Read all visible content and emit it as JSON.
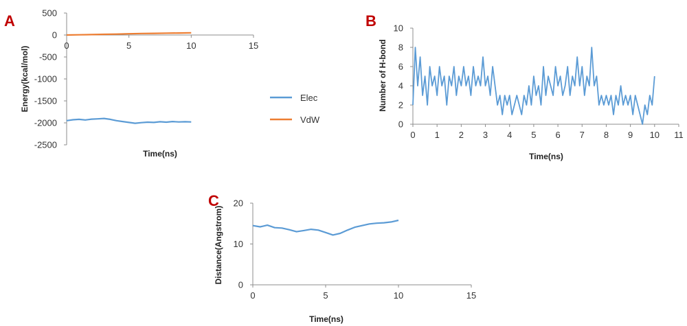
{
  "chart_data": [
    {
      "panel": "A",
      "type": "line",
      "xlabel": "Time(ns)",
      "ylabel": "Energy(kcal/mol)",
      "xlim": [
        0,
        15
      ],
      "ylim": [
        -2500,
        500
      ],
      "xticks": [
        0,
        5,
        10,
        15
      ],
      "yticks": [
        500,
        0,
        -500,
        -1000,
        -1500,
        -2000,
        -2500
      ],
      "grid": false,
      "legend_position": "right",
      "series": [
        {
          "name": "Elec",
          "color": "#5b9bd5",
          "x": [
            0,
            0.5,
            1,
            1.5,
            2,
            2.5,
            3,
            3.5,
            4,
            4.5,
            5,
            5.5,
            6,
            6.5,
            7,
            7.5,
            8,
            8.5,
            9,
            9.5,
            10
          ],
          "y": [
            -1950,
            -1930,
            -1920,
            -1935,
            -1915,
            -1910,
            -1900,
            -1920,
            -1950,
            -1970,
            -1990,
            -2010,
            -1995,
            -1985,
            -1990,
            -1975,
            -1985,
            -1970,
            -1980,
            -1975,
            -1980
          ]
        },
        {
          "name": "VdW",
          "color": "#ed7d31",
          "x": [
            0,
            1,
            2,
            3,
            4,
            5,
            6,
            7,
            8,
            9,
            10
          ],
          "y": [
            0,
            5,
            10,
            15,
            20,
            28,
            35,
            38,
            42,
            45,
            50
          ]
        }
      ]
    },
    {
      "panel": "B",
      "type": "line",
      "xlabel": "Time(ns)",
      "ylabel": "Number of H-bond",
      "xlim": [
        0,
        11
      ],
      "ylim": [
        0,
        10
      ],
      "xticks": [
        0,
        1,
        2,
        3,
        4,
        5,
        6,
        7,
        8,
        9,
        10,
        11
      ],
      "yticks": [
        10,
        8,
        6,
        4,
        2,
        0
      ],
      "grid": false,
      "series": [
        {
          "color": "#5b9bd5",
          "x": [
            0,
            0.1,
            0.2,
            0.3,
            0.4,
            0.5,
            0.6,
            0.7,
            0.8,
            0.9,
            1.0,
            1.1,
            1.2,
            1.3,
            1.4,
            1.5,
            1.6,
            1.7,
            1.8,
            1.9,
            2.0,
            2.1,
            2.2,
            2.3,
            2.4,
            2.5,
            2.6,
            2.7,
            2.8,
            2.9,
            3.0,
            3.1,
            3.2,
            3.3,
            3.4,
            3.5,
            3.6,
            3.7,
            3.8,
            3.9,
            4.0,
            4.1,
            4.2,
            4.3,
            4.4,
            4.5,
            4.6,
            4.7,
            4.8,
            4.9,
            5.0,
            5.1,
            5.2,
            5.3,
            5.4,
            5.5,
            5.6,
            5.7,
            5.8,
            5.9,
            6.0,
            6.1,
            6.2,
            6.3,
            6.4,
            6.5,
            6.6,
            6.7,
            6.8,
            6.9,
            7.0,
            7.1,
            7.2,
            7.3,
            7.4,
            7.5,
            7.6,
            7.7,
            7.8,
            7.9,
            8.0,
            8.1,
            8.2,
            8.3,
            8.4,
            8.5,
            8.6,
            8.7,
            8.8,
            8.9,
            9.0,
            9.1,
            9.2,
            9.3,
            9.4,
            9.5,
            9.6,
            9.7,
            9.8,
            9.9,
            10.0
          ],
          "y": [
            2,
            8,
            4,
            7,
            3,
            5,
            2,
            6,
            4,
            5,
            3,
            6,
            4,
            5,
            2,
            5,
            4,
            6,
            3,
            5,
            4,
            6,
            4,
            5,
            3,
            6,
            4,
            5,
            4,
            7,
            4,
            5,
            3,
            6,
            4,
            2,
            3,
            1,
            3,
            2,
            3,
            1,
            2,
            3,
            2,
            1,
            3,
            2,
            4,
            2,
            5,
            3,
            4,
            2,
            6,
            3,
            5,
            4,
            3,
            6,
            4,
            5,
            3,
            4,
            6,
            3,
            5,
            4,
            7,
            4,
            6,
            3,
            5,
            4,
            8,
            4,
            5,
            2,
            3,
            2,
            3,
            2,
            3,
            1,
            3,
            2,
            4,
            2,
            3,
            2,
            3,
            1,
            3,
            2,
            1,
            0,
            2,
            1,
            3,
            2,
            5
          ]
        }
      ]
    },
    {
      "panel": "C",
      "type": "line",
      "xlabel": "Time(ns)",
      "ylabel": "Distance(Angstrom)",
      "xlim": [
        0,
        15
      ],
      "ylim": [
        0,
        20
      ],
      "xticks": [
        0,
        5,
        10,
        15
      ],
      "yticks": [
        20,
        10,
        0
      ],
      "grid": false,
      "series": [
        {
          "color": "#5b9bd5",
          "x": [
            0,
            0.5,
            1,
            1.5,
            2,
            2.5,
            3,
            3.5,
            4,
            4.5,
            5,
            5.5,
            6,
            6.5,
            7,
            7.5,
            8,
            8.5,
            9,
            9.5,
            10
          ],
          "y": [
            14.5,
            14.2,
            14.6,
            14.0,
            13.9,
            13.5,
            13.0,
            13.3,
            13.6,
            13.4,
            12.8,
            12.2,
            12.6,
            13.4,
            14.1,
            14.5,
            14.9,
            15.1,
            15.2,
            15.4,
            15.8
          ]
        }
      ]
    }
  ],
  "legend": {
    "items": [
      {
        "label": "Elec",
        "color": "#5b9bd5"
      },
      {
        "label": "VdW",
        "color": "#ed7d31"
      }
    ]
  },
  "panel_letters": {
    "a": "A",
    "b": "B",
    "c": "C",
    "color": "#c00000"
  }
}
